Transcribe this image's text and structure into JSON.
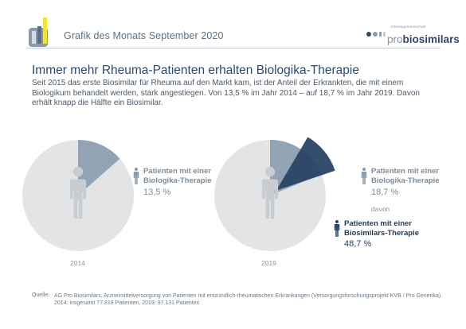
{
  "header": {
    "title": "Grafik des Monats September 2020",
    "brand_small": "Arbeitsgemeinschaft",
    "brand_pro": "pro",
    "brand_bio": "biosimilars"
  },
  "headline": "Immer mehr Rheuma-Patienten erhalten Biologika-Therapie",
  "intro": "Seit 2015 das erste Biosimilar für Rheuma auf den Markt kam, ist der Anteil der Erkrankten, die mit einem Biologikum behandelt werden, stark angestiegen. Von 13,5 % im Jahr 2014 – auf 18,7 % im Jahr 2019. Davon erhält knapp die Hälfte ein Biosimilar.",
  "chart_data": [
    {
      "type": "pie",
      "year_label": "2014",
      "slices": [
        {
          "label": "Patienten mit einer Biologika-Therapie",
          "value": 13.5,
          "value_label": "13,5 %",
          "color": "#8a9bad"
        }
      ]
    },
    {
      "type": "pie",
      "year_label": "2019",
      "slices": [
        {
          "label": "Patienten mit einer Biologika-Therapie",
          "value": 18.7,
          "value_label": "18,7 %",
          "color": "#8a9bad"
        }
      ],
      "sub_label": "davon",
      "sub_slice": {
        "label": "Patienten mit einer Biosimilars-Therapie",
        "value": 48.7,
        "value_label": "48,7 %",
        "color": "#2b4565"
      }
    }
  ],
  "labels": {
    "left_line1": "Patienten mit einer",
    "left_line2": "Biologika-Therapie",
    "right_line1": "Patienten mit einer",
    "right_line2": "Biologika-Therapie",
    "davon": "davon",
    "bio_line1": "Patienten mit einer",
    "bio_line2": "Biosimilars-Therapie"
  },
  "source": {
    "key": "Quelle:",
    "line1": "AG Pro Biosimilars, Arzneimittelversorgung von Patienten mit entzündlich-rheumatischen Erkrankungen (Versorgungsforschungsprojekt KVB / Pro Generika).",
    "line2": "2014: insgesamt 77.818 Patienten, 2019: 97.131 Patienten"
  },
  "colors": {
    "pie_base": "#e2e4e6",
    "biologika": "#8a9bad",
    "biosimilar": "#2b4565",
    "figure": "#c9cdd1",
    "brand_dark": "#2d4a6a"
  },
  "icons": [
    "bar-chart-logo-icon",
    "person-icon"
  ]
}
